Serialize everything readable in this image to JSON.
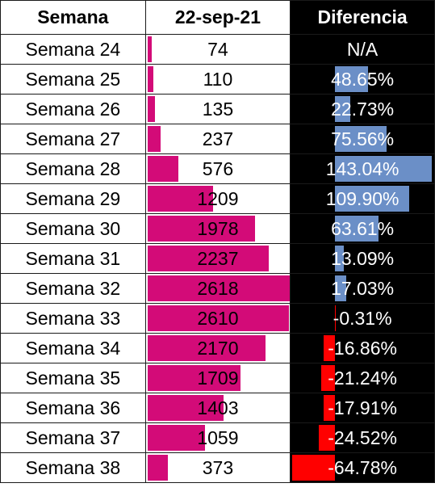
{
  "headers": {
    "week": "Semana",
    "date": "22-sep-21",
    "diff": "Diferencia"
  },
  "colors": {
    "count_bar": "#d30b78",
    "diff_positive": "#6b8fc7",
    "diff_negative": "#ff0000"
  },
  "chart_data": {
    "type": "table",
    "columns": [
      "Semana",
      "22-sep-21",
      "Diferencia"
    ],
    "rows": [
      {
        "week": "Semana 24",
        "count": 74,
        "count_label": "74",
        "diff": null,
        "diff_label": "N/A"
      },
      {
        "week": "Semana 25",
        "count": 110,
        "count_label": "110",
        "diff": 48.65,
        "diff_label": "48.65%"
      },
      {
        "week": "Semana 26",
        "count": 135,
        "count_label": "135",
        "diff": 22.73,
        "diff_label": "22.73%"
      },
      {
        "week": "Semana 27",
        "count": 237,
        "count_label": "237",
        "diff": 75.56,
        "diff_label": "75.56%"
      },
      {
        "week": "Semana 28",
        "count": 576,
        "count_label": "576",
        "diff": 143.04,
        "diff_label": "143.04%"
      },
      {
        "week": "Semana 29",
        "count": 1209,
        "count_label": "1209",
        "diff": 109.9,
        "diff_label": "109.90%"
      },
      {
        "week": "Semana 30",
        "count": 1978,
        "count_label": "1978",
        "diff": 63.61,
        "diff_label": "63.61%"
      },
      {
        "week": "Semana 31",
        "count": 2237,
        "count_label": "2237",
        "diff": 13.09,
        "diff_label": "13.09%"
      },
      {
        "week": "Semana 32",
        "count": 2618,
        "count_label": "2618",
        "diff": 17.03,
        "diff_label": "17.03%"
      },
      {
        "week": "Semana 33",
        "count": 2610,
        "count_label": "2610",
        "diff": -0.31,
        "diff_label": "-0.31%"
      },
      {
        "week": "Semana 34",
        "count": 2170,
        "count_label": "2170",
        "diff": -16.86,
        "diff_label": "-16.86%"
      },
      {
        "week": "Semana 35",
        "count": 1709,
        "count_label": "1709",
        "diff": -21.24,
        "diff_label": "-21.24%"
      },
      {
        "week": "Semana 36",
        "count": 1403,
        "count_label": "1403",
        "diff": -17.91,
        "diff_label": "-17.91%"
      },
      {
        "week": "Semana 37",
        "count": 1059,
        "count_label": "1059",
        "diff": -24.52,
        "diff_label": "-24.52%"
      },
      {
        "week": "Semana 38",
        "count": 373,
        "count_label": "373",
        "diff": -64.78,
        "diff_label": "-64.78%"
      }
    ]
  }
}
